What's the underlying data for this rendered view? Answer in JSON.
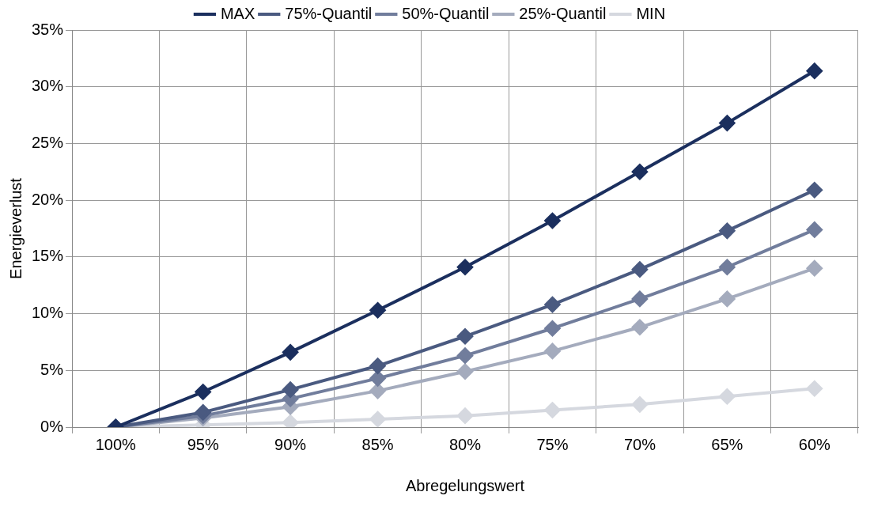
{
  "chart_data": {
    "type": "line",
    "xlabel": "Abregelungswert",
    "ylabel": "Energieverlust",
    "categories": [
      "100%",
      "95%",
      "90%",
      "85%",
      "80%",
      "75%",
      "70%",
      "65%",
      "60%"
    ],
    "series": [
      {
        "name": "MAX",
        "color": "#1b2f5e",
        "values": [
          0,
          3.1,
          6.6,
          10.3,
          14.1,
          18.2,
          22.5,
          26.8,
          31.4
        ]
      },
      {
        "name": "75%-Quantil",
        "color": "#4a5a80",
        "values": [
          0,
          1.3,
          3.3,
          5.4,
          8.0,
          10.8,
          13.9,
          17.3,
          20.9
        ]
      },
      {
        "name": "50%-Quantil",
        "color": "#717d9c",
        "values": [
          0,
          1.0,
          2.5,
          4.3,
          6.3,
          8.7,
          11.3,
          14.1,
          17.4
        ]
      },
      {
        "name": "25%-Quantil",
        "color": "#a4abbd",
        "values": [
          0,
          0.8,
          1.8,
          3.2,
          4.9,
          6.7,
          8.8,
          11.3,
          14.0
        ]
      },
      {
        "name": "MIN",
        "color": "#d5d8df",
        "values": [
          0,
          0.2,
          0.4,
          0.7,
          1.0,
          1.5,
          2.0,
          2.7,
          3.4
        ]
      }
    ],
    "ylim": [
      0,
      35
    ],
    "yticks": [
      {
        "value": 0,
        "label": "0%"
      },
      {
        "value": 5,
        "label": "5%"
      },
      {
        "value": 10,
        "label": "10%"
      },
      {
        "value": 15,
        "label": "15%"
      },
      {
        "value": 20,
        "label": "20%"
      },
      {
        "value": 25,
        "label": "25%"
      },
      {
        "value": 30,
        "label": "30%"
      },
      {
        "value": 35,
        "label": "35%"
      }
    ],
    "grid": true,
    "legend": "top",
    "marker": "diamond",
    "line_style": "solid"
  }
}
